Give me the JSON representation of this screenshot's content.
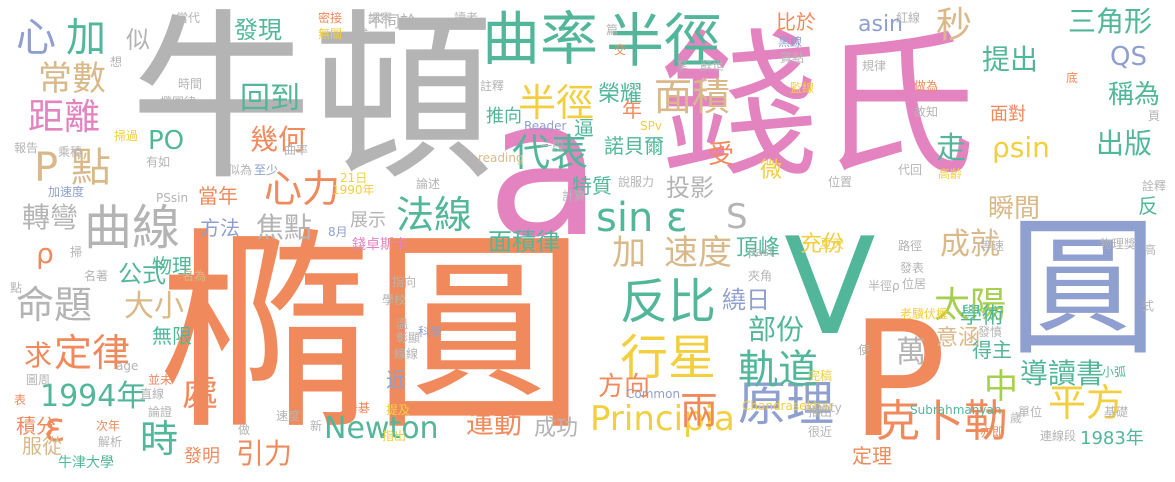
{
  "palette": {
    "orange": "#f08a5d",
    "green": "#52b79a",
    "blue": "#8f9fcf",
    "pink": "#e384c1",
    "lime": "#a6cf4f",
    "yellow": "#f2cf3f",
    "tan": "#d9b98a",
    "gray": "#b4b4b4"
  },
  "words": [
    {
      "text": "橢圓",
      "color": "#f08a5d"
    },
    {
      "text": "牛頓",
      "color": "#b4b4b4"
    },
    {
      "text": "錢氏",
      "color": "#e384c1"
    },
    {
      "text": "圓",
      "color": "#8f9fcf"
    },
    {
      "text": "a",
      "color": "#e384c1"
    },
    {
      "text": "V",
      "color": "#52b79a"
    },
    {
      "text": "P",
      "color": "#f08a5d"
    },
    {
      "text": "曲率",
      "color": "#52b79a"
    },
    {
      "text": "半徑",
      "color": "#52b79a"
    },
    {
      "text": "曲線",
      "color": "#b4b4b4"
    },
    {
      "text": "反比",
      "color": "#52b79a"
    },
    {
      "text": "行星",
      "color": "#f2cf3f"
    },
    {
      "text": "原理",
      "color": "#8f9fcf"
    },
    {
      "text": "平方",
      "color": "#f2cf3f"
    },
    {
      "text": "克卜勒",
      "color": "#f08a5d"
    },
    {
      "text": "軌道",
      "color": "#52b79a"
    },
    {
      "text": "sin ε",
      "color": "#52b79a"
    },
    {
      "text": "心力",
      "color": "#f08a5d"
    },
    {
      "text": "法線",
      "color": "#52b79a"
    },
    {
      "text": "代表",
      "color": "#52b79a"
    },
    {
      "text": "半徑",
      "color": "#f2cf3f"
    },
    {
      "text": "面積",
      "color": "#d9b98a"
    },
    {
      "text": "秒",
      "color": "#d9b98a"
    },
    {
      "text": "提出",
      "color": "#52b79a"
    },
    {
      "text": "三角形",
      "color": "#52b79a"
    },
    {
      "text": "常數",
      "color": "#d9b98a"
    },
    {
      "text": "距離",
      "color": "#e384c1"
    },
    {
      "text": "P 點",
      "color": "#d9b98a"
    },
    {
      "text": "心",
      "color": "#8f9fcf"
    },
    {
      "text": "加",
      "color": "#52b79a"
    },
    {
      "text": "回到",
      "color": "#52b79a"
    },
    {
      "text": "發現",
      "color": "#52b79a"
    },
    {
      "text": "幾何",
      "color": "#f08a5d"
    },
    {
      "text": "PO",
      "color": "#52b79a"
    },
    {
      "text": "焦點",
      "color": "#b4b4b4"
    },
    {
      "text": "轉彎",
      "color": "#b4b4b4"
    },
    {
      "text": "ρ",
      "color": "#f08a5d"
    },
    {
      "text": "命題",
      "color": "#b4b4b4"
    },
    {
      "text": "大小",
      "color": "#d9b98a"
    },
    {
      "text": "公式",
      "color": "#52b79a"
    },
    {
      "text": "求",
      "color": "#f08a5d"
    },
    {
      "text": "定律",
      "color": "#f08a5d"
    },
    {
      "text": "1994年",
      "color": "#52b79a"
    },
    {
      "text": "ε",
      "color": "#f08a5d"
    },
    {
      "text": "時",
      "color": "#52b79a"
    },
    {
      "text": "處",
      "color": "#f08a5d"
    },
    {
      "text": "引力",
      "color": "#f08a5d"
    },
    {
      "text": "Newton",
      "color": "#52b79a"
    },
    {
      "text": "運動",
      "color": "#f08a5d"
    },
    {
      "text": "成功",
      "color": "#b4b4b4"
    },
    {
      "text": "Principia",
      "color": "#f2cf3f"
    },
    {
      "text": "方向",
      "color": "#f08a5d"
    },
    {
      "text": "兩",
      "color": "#f08a5d"
    },
    {
      "text": "加",
      "color": "#d9b98a"
    },
    {
      "text": "速度",
      "color": "#d9b98a"
    },
    {
      "text": "太陽",
      "color": "#a6cf4f"
    },
    {
      "text": "成就",
      "color": "#d9b98a"
    },
    {
      "text": "面積律",
      "color": "#52b79a"
    },
    {
      "text": "投影",
      "color": "#b4b4b4"
    },
    {
      "text": "S",
      "color": "#b4b4b4"
    },
    {
      "text": "繞日",
      "color": "#8f9fcf"
    },
    {
      "text": "部份",
      "color": "#52b79a"
    },
    {
      "text": "中",
      "color": "#a6cf4f"
    },
    {
      "text": "導讀書",
      "color": "#52b79a"
    },
    {
      "text": "瞬間",
      "color": "#d9b98a"
    },
    {
      "text": "學術",
      "color": "#52b79a"
    },
    {
      "text": "意涵",
      "color": "#d9b98a"
    },
    {
      "text": "asin",
      "color": "#8f9fcf"
    },
    {
      "text": "ρsin",
      "color": "#f2cf3f"
    },
    {
      "text": "出版",
      "color": "#52b79a"
    },
    {
      "text": "稱為",
      "color": "#52b79a"
    },
    {
      "text": "走",
      "color": "#52b79a"
    },
    {
      "text": "榮耀",
      "color": "#52b79a"
    },
    {
      "text": "物理",
      "color": "#52b79a"
    },
    {
      "text": "當年",
      "color": "#f08a5d"
    },
    {
      "text": "方法",
      "color": "#8f9fcf"
    },
    {
      "text": "充份",
      "color": "#f2cf3f"
    },
    {
      "text": "頂峰",
      "color": "#52b79a"
    },
    {
      "text": "萬",
      "color": "#b4b4b4"
    },
    {
      "text": "得主",
      "color": "#52b79a"
    },
    {
      "text": "1983年",
      "color": "#52b79a"
    },
    {
      "text": "定理",
      "color": "#f08a5d"
    },
    {
      "text": "QS",
      "color": "#8f9fcf"
    },
    {
      "text": "面對",
      "color": "#f08a5d"
    },
    {
      "text": "諾貝爾",
      "color": "#52b79a"
    },
    {
      "text": "推向",
      "color": "#52b79a"
    },
    {
      "text": "逼",
      "color": "#52b79a"
    },
    {
      "text": "特質",
      "color": "#52b79a"
    },
    {
      "text": "微",
      "color": "#f2cf3f"
    },
    {
      "text": "受",
      "color": "#f08a5d"
    },
    {
      "text": "年",
      "color": "#f08a5d"
    },
    {
      "text": "似",
      "color": "#b4b4b4"
    },
    {
      "text": "比於",
      "color": "#f08a5d"
    },
    {
      "text": "無限",
      "color": "#52b79a"
    },
    {
      "text": "積分",
      "color": "#f08a5d"
    },
    {
      "text": "服從",
      "color": "#d9b98a"
    },
    {
      "text": "發明",
      "color": "#f08a5d"
    },
    {
      "text": "近",
      "color": "#8f9fcf"
    },
    {
      "text": "展示",
      "color": "#b4b4b4"
    },
    {
      "text": "錢卓斯卡",
      "color": "#e384c1"
    },
    {
      "text": "Chandrasekhar",
      "color": "#f2cf3f"
    },
    {
      "text": "Subrahmanyan",
      "color": "#52b79a"
    },
    {
      "text": "Reader",
      "color": "#8f9fcf"
    },
    {
      "text": "reading",
      "color": "#d9b98a"
    },
    {
      "text": "Common",
      "color": "#8f9fcf"
    },
    {
      "text": "eighty",
      "color": "#b4b4b4"
    },
    {
      "text": "past",
      "color": "#b4b4b4"
    },
    {
      "text": "SPv",
      "color": "#f2cf3f"
    },
    {
      "text": "PSsin",
      "color": "#b4b4b4"
    },
    {
      "text": "牛津大學",
      "color": "#52b79a"
    },
    {
      "text": "1990年",
      "color": "#f2cf3f"
    },
    {
      "text": "21日",
      "color": "#f2cf3f"
    },
    {
      "text": "8月",
      "color": "#8f9fcf"
    },
    {
      "text": "不同於",
      "color": "#b4b4b4"
    },
    {
      "text": "當代",
      "color": "#b4b4b4"
    },
    {
      "text": "密接",
      "color": "#f08a5d"
    },
    {
      "text": "細察",
      "color": "#b4b4b4"
    },
    {
      "text": "讀者",
      "color": "#b4b4b4"
    },
    {
      "text": "無關",
      "color": "#f2cf3f"
    },
    {
      "text": "成",
      "color": "#b4b4b4"
    },
    {
      "text": "紅線",
      "color": "#b4b4b4"
    },
    {
      "text": "黑線",
      "color": "#8f9fcf"
    },
    {
      "text": "質點",
      "color": "#b4b4b4"
    },
    {
      "text": "規律",
      "color": "#b4b4b4"
    },
    {
      "text": "監線",
      "color": "#f2cf3f"
    },
    {
      "text": "做為",
      "color": "#f08a5d"
    },
    {
      "text": "故知",
      "color": "#b4b4b4"
    },
    {
      "text": "時間",
      "color": "#b4b4b4"
    },
    {
      "text": "橢圓律",
      "color": "#b4b4b4"
    },
    {
      "text": "註釋",
      "color": "#b4b4b4"
    },
    {
      "text": "享",
      "color": "#b4b4b4"
    },
    {
      "text": "辭世",
      "color": "#b4b4b4"
    },
    {
      "text": "報告",
      "color": "#b4b4b4"
    },
    {
      "text": "乘積",
      "color": "#b4b4b4"
    },
    {
      "text": "掃過",
      "color": "#f2cf3f"
    },
    {
      "text": "有如",
      "color": "#b4b4b4"
    },
    {
      "text": "似為",
      "color": "#b4b4b4"
    },
    {
      "text": "至少",
      "color": "#8f9fcf"
    },
    {
      "text": "曲率",
      "color": "#b4b4b4"
    },
    {
      "text": "加速度",
      "color": "#8f9fcf"
    },
    {
      "text": "一段",
      "color": "#b4b4b4"
    },
    {
      "text": "說服力",
      "color": "#b4b4b4"
    },
    {
      "text": "論述",
      "color": "#b4b4b4"
    },
    {
      "text": "計算",
      "color": "#b4b4b4"
    },
    {
      "text": "位置",
      "color": "#b4b4b4"
    },
    {
      "text": "代回",
      "color": "#b4b4b4"
    },
    {
      "text": "高齡",
      "color": "#f2cf3f"
    },
    {
      "text": "名著",
      "color": "#b4b4b4"
    },
    {
      "text": "名為",
      "color": "#d9b98a"
    },
    {
      "text": "指向",
      "color": "#b4b4b4"
    },
    {
      "text": "學校",
      "color": "#b4b4b4"
    },
    {
      "text": "夾角",
      "color": "#b4b4b4"
    },
    {
      "text": "夏天",
      "color": "#f2cf3f"
    },
    {
      "text": "路徑",
      "color": "#b4b4b4"
    },
    {
      "text": "發表",
      "color": "#b4b4b4"
    },
    {
      "text": "位居",
      "color": "#b4b4b4"
    },
    {
      "text": "等速",
      "color": "#b4b4b4"
    },
    {
      "text": "物理獎",
      "color": "#b4b4b4"
    },
    {
      "text": "高",
      "color": "#b4b4b4"
    },
    {
      "text": "半徑ρ",
      "color": "#b4b4b4"
    },
    {
      "text": "老驥伏櫪",
      "color": "#f2cf3f"
    },
    {
      "text": "發憤",
      "color": "#b4b4b4"
    },
    {
      "text": "科學",
      "color": "#8f9fcf"
    },
    {
      "text": "彰顯",
      "color": "#b4b4b4"
    },
    {
      "text": "溫",
      "color": "#b4b4b4"
    },
    {
      "text": "線線",
      "color": "#b4b4b4"
    },
    {
      "text": "age",
      "color": "#b4b4b4"
    },
    {
      "text": "並未",
      "color": "#f08a5d"
    },
    {
      "text": "直線",
      "color": "#b4b4b4"
    },
    {
      "text": "圖周",
      "color": "#b4b4b4"
    },
    {
      "text": "論證",
      "color": "#b4b4b4"
    },
    {
      "text": "速度",
      "color": "#b4b4b4"
    },
    {
      "text": "提及",
      "color": "#f2cf3f"
    },
    {
      "text": "垂碁",
      "color": "#f08a5d"
    },
    {
      "text": "完稿",
      "color": "#f2cf3f"
    },
    {
      "text": "推出",
      "color": "#b4b4b4"
    },
    {
      "text": "單位",
      "color": "#b4b4b4"
    },
    {
      "text": "小弧",
      "color": "#52b79a"
    },
    {
      "text": "基礎",
      "color": "#b4b4b4"
    },
    {
      "text": "次年",
      "color": "#f08a5d"
    },
    {
      "text": "解析",
      "color": "#b4b4b4"
    },
    {
      "text": "指出",
      "color": "#f2cf3f"
    },
    {
      "text": "很近",
      "color": "#b4b4b4"
    },
    {
      "text": "亦即",
      "color": "#f08a5d"
    },
    {
      "text": "連線段",
      "color": "#b4b4b4"
    },
    {
      "text": "歲",
      "color": "#b4b4b4"
    },
    {
      "text": "想",
      "color": "#b4b4b4"
    },
    {
      "text": "篇",
      "color": "#b4b4b4"
    },
    {
      "text": "交",
      "color": "#f08a5d"
    },
    {
      "text": "詮釋",
      "color": "#b4b4b4"
    },
    {
      "text": "頁",
      "color": "#b4b4b4"
    },
    {
      "text": "底",
      "color": "#f08a5d"
    },
    {
      "text": "反",
      "color": "#52b79a"
    },
    {
      "text": "掃",
      "color": "#b4b4b4"
    },
    {
      "text": "點",
      "color": "#b4b4b4"
    },
    {
      "text": "表",
      "color": "#f08a5d"
    },
    {
      "text": "式",
      "color": "#b4b4b4"
    },
    {
      "text": "使",
      "color": "#b4b4b4"
    },
    {
      "text": "做",
      "color": "#b4b4b4"
    },
    {
      "text": "新",
      "color": "#b4b4b4"
    }
  ]
}
